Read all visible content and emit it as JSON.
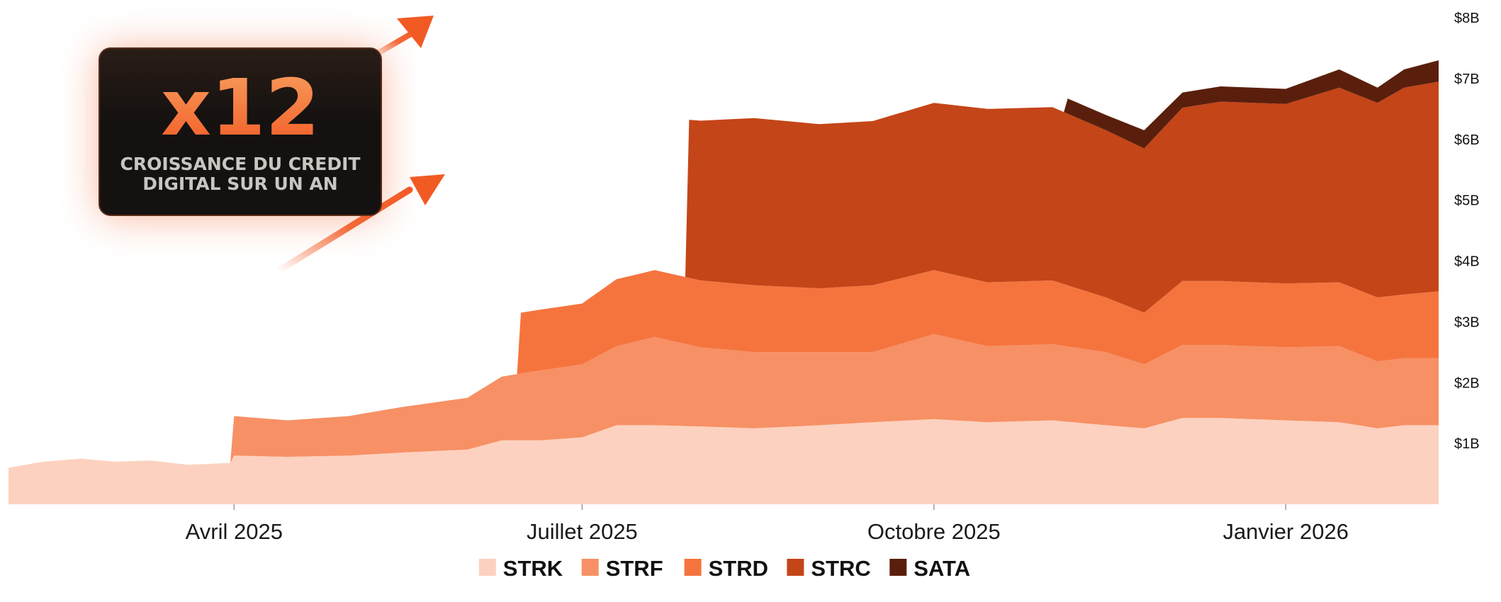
{
  "callout": {
    "multiplier": "x12",
    "subtitle_line1": "CROISSANCE DU CREDIT",
    "subtitle_line2": "DIGITAL SUR UN AN",
    "accent_color": "#f25a24",
    "box_color": "#141110",
    "icons": [
      "arrow-up-right-icon",
      "arrow-up-right-icon"
    ]
  },
  "chart_data": {
    "type": "area",
    "stacked": true,
    "title": "",
    "xlabel": "",
    "ylabel": "",
    "y_axis_position": "right",
    "ylim": [
      0,
      8
    ],
    "y_ticks": [
      1,
      2,
      3,
      4,
      5,
      6,
      7,
      8
    ],
    "y_tick_labels": [
      "$1B",
      "$2B",
      "$3B",
      "$4B",
      "$5B",
      "$6B",
      "$7B",
      "$8B"
    ],
    "xlim": [
      "2025-02-01",
      "2026-02-10"
    ],
    "x_ticks": [
      "2025-04-01",
      "2025-07-01",
      "2025-10-01",
      "2026-01-01"
    ],
    "x_tick_labels": [
      "Avril 2025",
      "Juillet 2025",
      "Octobre 2025",
      "Janvier 2026"
    ],
    "grid": false,
    "legend_position": "bottom-center",
    "series": [
      {
        "name": "STRK",
        "color": "#fdd1bf",
        "points": [
          [
            "2025-02-01",
            0.6
          ],
          [
            "2025-02-10",
            0.7
          ],
          [
            "2025-02-20",
            0.75
          ],
          [
            "2025-03-01",
            0.7
          ],
          [
            "2025-03-10",
            0.72
          ],
          [
            "2025-03-20",
            0.65
          ],
          [
            "2025-03-31",
            0.68
          ],
          [
            "2025-04-01",
            0.8
          ],
          [
            "2025-04-15",
            0.78
          ],
          [
            "2025-05-01",
            0.8
          ],
          [
            "2025-05-15",
            0.85
          ],
          [
            "2025-06-01",
            0.9
          ],
          [
            "2025-06-10",
            1.05
          ],
          [
            "2025-06-20",
            1.05
          ],
          [
            "2025-07-01",
            1.1
          ],
          [
            "2025-07-10",
            1.3
          ],
          [
            "2025-07-20",
            1.3
          ],
          [
            "2025-08-01",
            1.28
          ],
          [
            "2025-08-15",
            1.25
          ],
          [
            "2025-09-01",
            1.3
          ],
          [
            "2025-09-15",
            1.35
          ],
          [
            "2025-10-01",
            1.4
          ],
          [
            "2025-10-15",
            1.35
          ],
          [
            "2025-11-01",
            1.38
          ],
          [
            "2025-11-15",
            1.3
          ],
          [
            "2025-11-25",
            1.25
          ],
          [
            "2025-12-05",
            1.42
          ],
          [
            "2025-12-15",
            1.42
          ],
          [
            "2026-01-01",
            1.38
          ],
          [
            "2026-01-15",
            1.35
          ],
          [
            "2026-01-25",
            1.25
          ],
          [
            "2026-02-01",
            1.3
          ],
          [
            "2026-02-10",
            1.3
          ]
        ]
      },
      {
        "name": "STRF",
        "color": "#f79065",
        "points": [
          [
            "2025-02-01",
            0
          ],
          [
            "2025-03-31",
            0
          ],
          [
            "2025-04-01",
            0.65
          ],
          [
            "2025-04-15",
            0.6
          ],
          [
            "2025-05-01",
            0.65
          ],
          [
            "2025-05-15",
            0.75
          ],
          [
            "2025-06-01",
            0.85
          ],
          [
            "2025-06-10",
            1.05
          ],
          [
            "2025-06-20",
            1.15
          ],
          [
            "2025-07-01",
            1.2
          ],
          [
            "2025-07-10",
            1.3
          ],
          [
            "2025-07-20",
            1.45
          ],
          [
            "2025-08-01",
            1.3
          ],
          [
            "2025-08-15",
            1.25
          ],
          [
            "2025-09-01",
            1.2
          ],
          [
            "2025-09-15",
            1.15
          ],
          [
            "2025-10-01",
            1.4
          ],
          [
            "2025-10-15",
            1.25
          ],
          [
            "2025-11-01",
            1.25
          ],
          [
            "2025-11-15",
            1.2
          ],
          [
            "2025-11-25",
            1.05
          ],
          [
            "2025-12-05",
            1.2
          ],
          [
            "2025-12-15",
            1.2
          ],
          [
            "2026-01-01",
            1.2
          ],
          [
            "2026-01-15",
            1.25
          ],
          [
            "2026-01-25",
            1.1
          ],
          [
            "2026-02-01",
            1.1
          ],
          [
            "2026-02-10",
            1.1
          ]
        ]
      },
      {
        "name": "STRD",
        "color": "#f5743e",
        "points": [
          [
            "2025-02-01",
            0
          ],
          [
            "2025-06-14",
            0
          ],
          [
            "2025-06-15",
            1.0
          ],
          [
            "2025-07-01",
            1.0
          ],
          [
            "2025-07-10",
            1.1
          ],
          [
            "2025-07-20",
            1.1
          ],
          [
            "2025-08-01",
            1.1
          ],
          [
            "2025-08-15",
            1.1
          ],
          [
            "2025-09-01",
            1.05
          ],
          [
            "2025-09-15",
            1.1
          ],
          [
            "2025-10-01",
            1.05
          ],
          [
            "2025-10-15",
            1.05
          ],
          [
            "2025-11-01",
            1.05
          ],
          [
            "2025-11-15",
            0.9
          ],
          [
            "2025-11-25",
            0.85
          ],
          [
            "2025-12-05",
            1.05
          ],
          [
            "2025-12-15",
            1.05
          ],
          [
            "2026-01-01",
            1.05
          ],
          [
            "2026-01-15",
            1.05
          ],
          [
            "2026-01-25",
            1.05
          ],
          [
            "2026-02-01",
            1.05
          ],
          [
            "2026-02-10",
            1.1
          ]
        ]
      },
      {
        "name": "STRC",
        "color": "#c44518",
        "points": [
          [
            "2025-02-01",
            0
          ],
          [
            "2025-07-28",
            0
          ],
          [
            "2025-07-29",
            2.6
          ],
          [
            "2025-08-15",
            2.75
          ],
          [
            "2025-09-01",
            2.7
          ],
          [
            "2025-09-15",
            2.7
          ],
          [
            "2025-10-01",
            2.75
          ],
          [
            "2025-10-15",
            2.85
          ],
          [
            "2025-11-01",
            2.85
          ],
          [
            "2025-11-15",
            2.75
          ],
          [
            "2025-11-25",
            2.7
          ],
          [
            "2025-12-05",
            2.85
          ],
          [
            "2025-12-15",
            2.95
          ],
          [
            "2026-01-01",
            2.95
          ],
          [
            "2026-01-15",
            3.2
          ],
          [
            "2026-01-25",
            3.2
          ],
          [
            "2026-02-01",
            3.4
          ],
          [
            "2026-02-10",
            3.45
          ]
        ]
      },
      {
        "name": "SATA",
        "color": "#5a1f0c",
        "points": [
          [
            "2025-02-01",
            0
          ],
          [
            "2025-11-04",
            0
          ],
          [
            "2025-11-05",
            0.25
          ],
          [
            "2025-11-15",
            0.25
          ],
          [
            "2025-11-25",
            0.3
          ],
          [
            "2025-12-05",
            0.25
          ],
          [
            "2025-12-15",
            0.25
          ],
          [
            "2026-01-01",
            0.25
          ],
          [
            "2026-01-15",
            0.3
          ],
          [
            "2026-01-25",
            0.25
          ],
          [
            "2026-02-01",
            0.3
          ],
          [
            "2026-02-10",
            0.35
          ]
        ]
      }
    ]
  }
}
